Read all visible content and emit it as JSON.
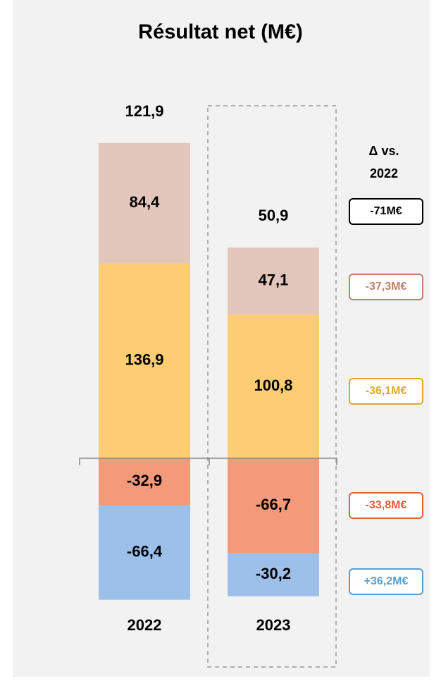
{
  "chart_data": {
    "type": "stacked_bar",
    "title": "Résultat net (M€)",
    "categories": [
      "2022",
      "2023"
    ],
    "series": [
      {
        "color": "#f4997a",
        "values": [
          -32.9,
          -66.7
        ],
        "value_labels": [
          "-32,9",
          "-66,7"
        ]
      },
      {
        "color": "#9dc0ea",
        "values": [
          -66.4,
          -30.2
        ],
        "value_labels": [
          "-66,4",
          "-30,2"
        ]
      },
      {
        "color": "#fdcd74",
        "values": [
          136.9,
          100.8
        ],
        "value_labels": [
          "136,9",
          "100,8"
        ]
      },
      {
        "color": "#e2c6bc",
        "values": [
          84.4,
          47.1
        ],
        "value_labels": [
          "84,4",
          "47,1"
        ]
      }
    ],
    "totals": [
      121.9,
      50.9
    ],
    "total_labels": [
      "121,9",
      "50,9"
    ],
    "delta_title": "Δ vs. 2022",
    "deltas": [
      {
        "label": "-71M€",
        "color": "#000000"
      },
      {
        "label": "-37,3M€",
        "color": "#c0806a"
      },
      {
        "label": "-36,1M€",
        "color": "#e0a830"
      },
      {
        "label": "-33,8M€",
        "color": "#e0603a"
      },
      {
        "label": "+36,2M€",
        "color": "#5a9ed0"
      }
    ]
  }
}
